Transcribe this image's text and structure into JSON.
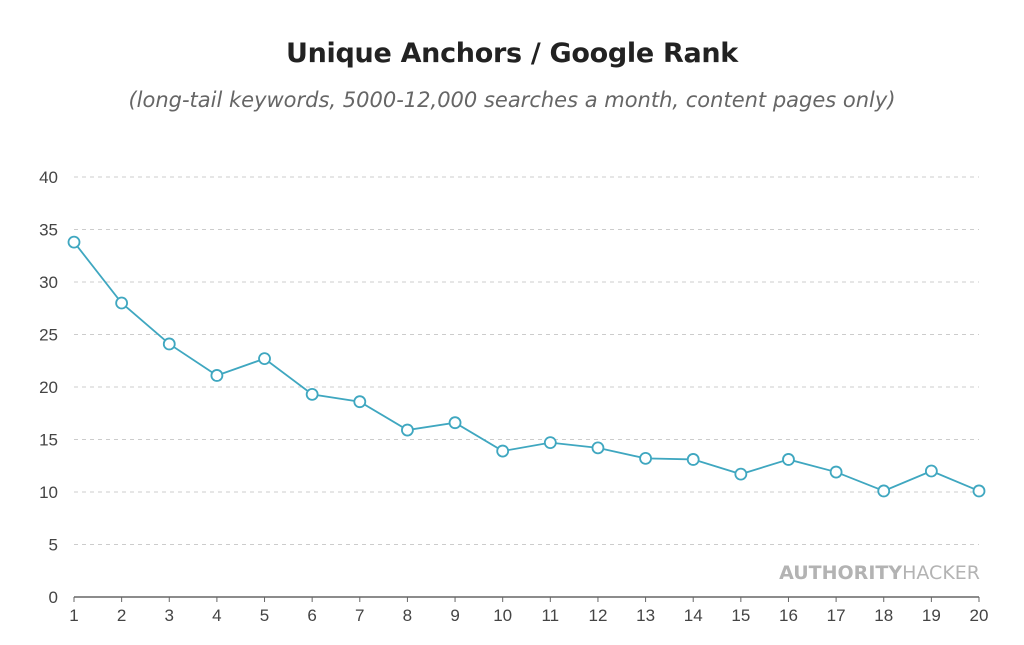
{
  "chart_data": {
    "type": "line",
    "title": "Unique Anchors / Google Rank",
    "subtitle": "(long-tail keywords, 5000-12,000 searches a month, content pages only)",
    "xlabel": "",
    "ylabel": "",
    "x": [
      1,
      2,
      3,
      4,
      5,
      6,
      7,
      8,
      9,
      10,
      11,
      12,
      13,
      14,
      15,
      16,
      17,
      18,
      19,
      20
    ],
    "series": [
      {
        "values": [
          33.8,
          28.0,
          24.1,
          21.1,
          22.7,
          19.3,
          18.6,
          15.9,
          16.6,
          13.9,
          14.7,
          14.2,
          13.2,
          13.1,
          11.7,
          13.1,
          11.9,
          10.1,
          12.0,
          10.1
        ],
        "color": "#3fa7c0"
      }
    ],
    "ylim": [
      0,
      40
    ],
    "yticks": [
      0,
      5,
      10,
      15,
      20,
      25,
      30,
      35,
      40
    ],
    "grid": true,
    "watermark": {
      "bold_part": "AUTHORITY",
      "light_part": "HACKER"
    }
  }
}
